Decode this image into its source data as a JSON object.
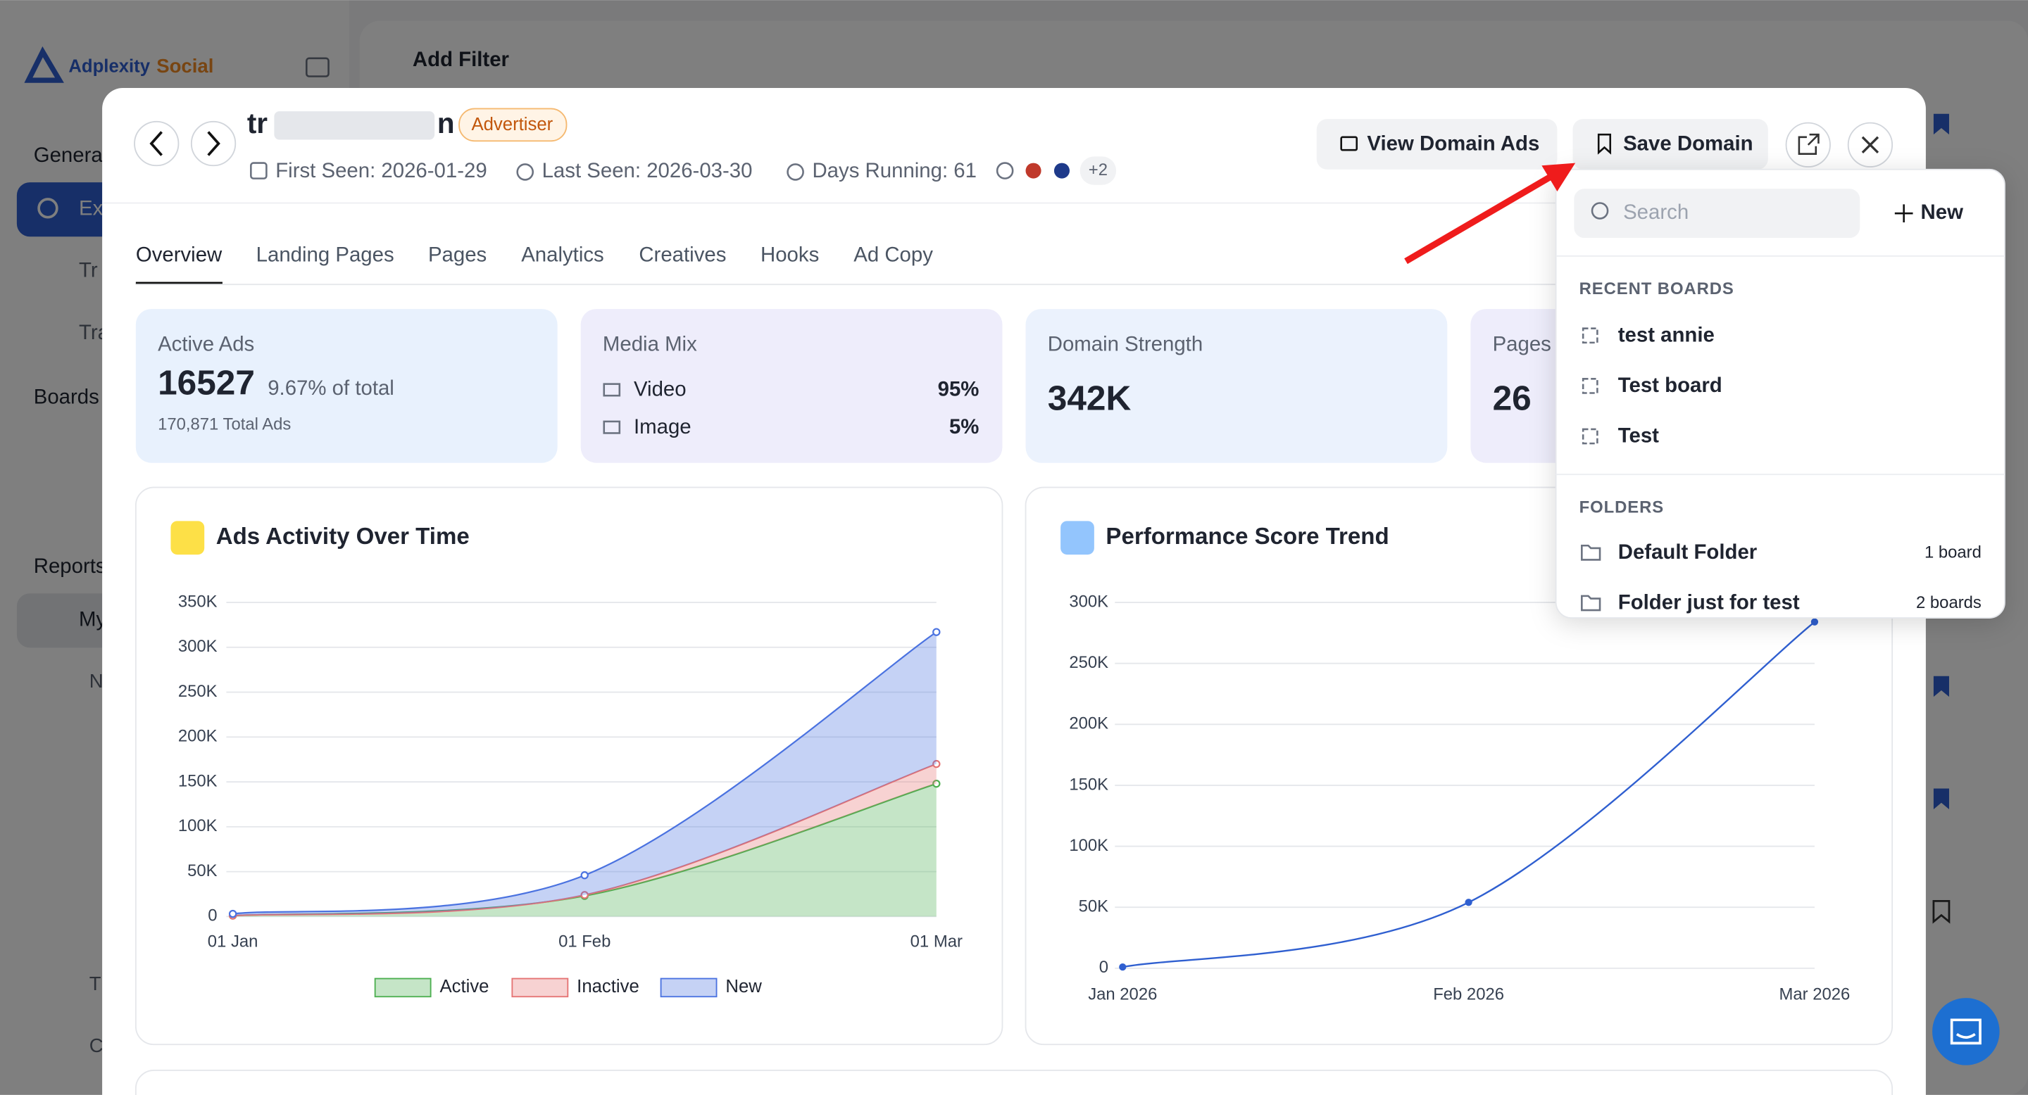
{
  "sidebar": {
    "logo_a": "Adplexity",
    "logo_b": "Social",
    "general": "Genera",
    "explore": "Ex",
    "trending": "Tr",
    "tracked": "Tra",
    "boards": "Boards",
    "reports": "Reports",
    "my": "My",
    "new": "N",
    "telegram": "T",
    "contact": "C"
  },
  "toolbar": {
    "add_filter": "Add Filter"
  },
  "modal": {
    "title_start": "tr",
    "title_end": "n",
    "badge": "Advertiser",
    "first_seen": "First Seen: 2026-01-29",
    "last_seen": "Last Seen: 2026-03-30",
    "days_running": "Days Running: 61",
    "more_countries": "+2",
    "view_ads": "View Domain Ads",
    "save_domain": "Save Domain",
    "tabs": [
      "Overview",
      "Landing Pages",
      "Pages",
      "Analytics",
      "Creatives",
      "Hooks",
      "Ad Copy"
    ],
    "cards": {
      "active_ads": {
        "label": "Active Ads",
        "value": "16527",
        "share": "9.67% of total",
        "total": "170,871 Total Ads"
      },
      "media_mix": {
        "label": "Media Mix",
        "rows": [
          [
            "Video",
            "95%"
          ],
          [
            "Image",
            "5%"
          ]
        ]
      },
      "domain_strength": {
        "label": "Domain Strength",
        "value": "342K"
      },
      "pages": {
        "label": "Pages",
        "value": "26"
      }
    }
  },
  "save_menu": {
    "search": "Search",
    "new": "New",
    "recent_heading": "RECENT BOARDS",
    "recent": [
      "test annie",
      "Test board",
      "Test"
    ],
    "folders_heading": "FOLDERS",
    "folders": [
      [
        "Default Folder",
        "1 board"
      ],
      [
        "Folder just for test",
        "2 boards"
      ]
    ]
  },
  "chart_data": [
    {
      "type": "area",
      "stacked": true,
      "title": "Ads Activity Over Time",
      "grid": true,
      "categories": [
        "01 Jan",
        "01 Feb",
        "01 Mar"
      ],
      "series": [
        {
          "name": "Active",
          "color": "#4caf50",
          "values": [
            1000,
            23000,
            148000
          ]
        },
        {
          "name": "Inactive",
          "color": "#e57373",
          "values": [
            0,
            1000,
            22000
          ]
        },
        {
          "name": "New",
          "color": "#4a72e0",
          "values": [
            2000,
            22000,
            147000
          ]
        }
      ],
      "ylim": [
        0,
        350000
      ],
      "yticks": [
        0,
        {
          "value": 50000,
          "label": "50K"
        },
        {
          "value": 100000,
          "label": "100K"
        },
        {
          "value": 150000,
          "label": "150K"
        },
        {
          "value": 200000,
          "label": "200K"
        },
        {
          "value": 250000,
          "label": "250K"
        },
        {
          "value": 300000,
          "label": "300K"
        },
        {
          "value": 350000,
          "label": "350K"
        }
      ]
    },
    {
      "type": "line",
      "title": "Performance Score Trend",
      "grid": true,
      "color": "#2f5fd0",
      "categories": [
        "Jan 2026",
        "Feb 2026",
        "Mar 2026"
      ],
      "values": [
        1000,
        54000,
        284000
      ],
      "ylim": [
        0,
        300000
      ],
      "yticks": [
        0,
        {
          "value": 50000,
          "label": "50K"
        },
        {
          "value": 100000,
          "label": "100K"
        },
        {
          "value": 150000,
          "label": "150K"
        },
        {
          "value": 200000,
          "label": "200K"
        },
        {
          "value": 250000,
          "label": "250K"
        },
        {
          "value": 300000,
          "label": "300K"
        }
      ]
    }
  ]
}
